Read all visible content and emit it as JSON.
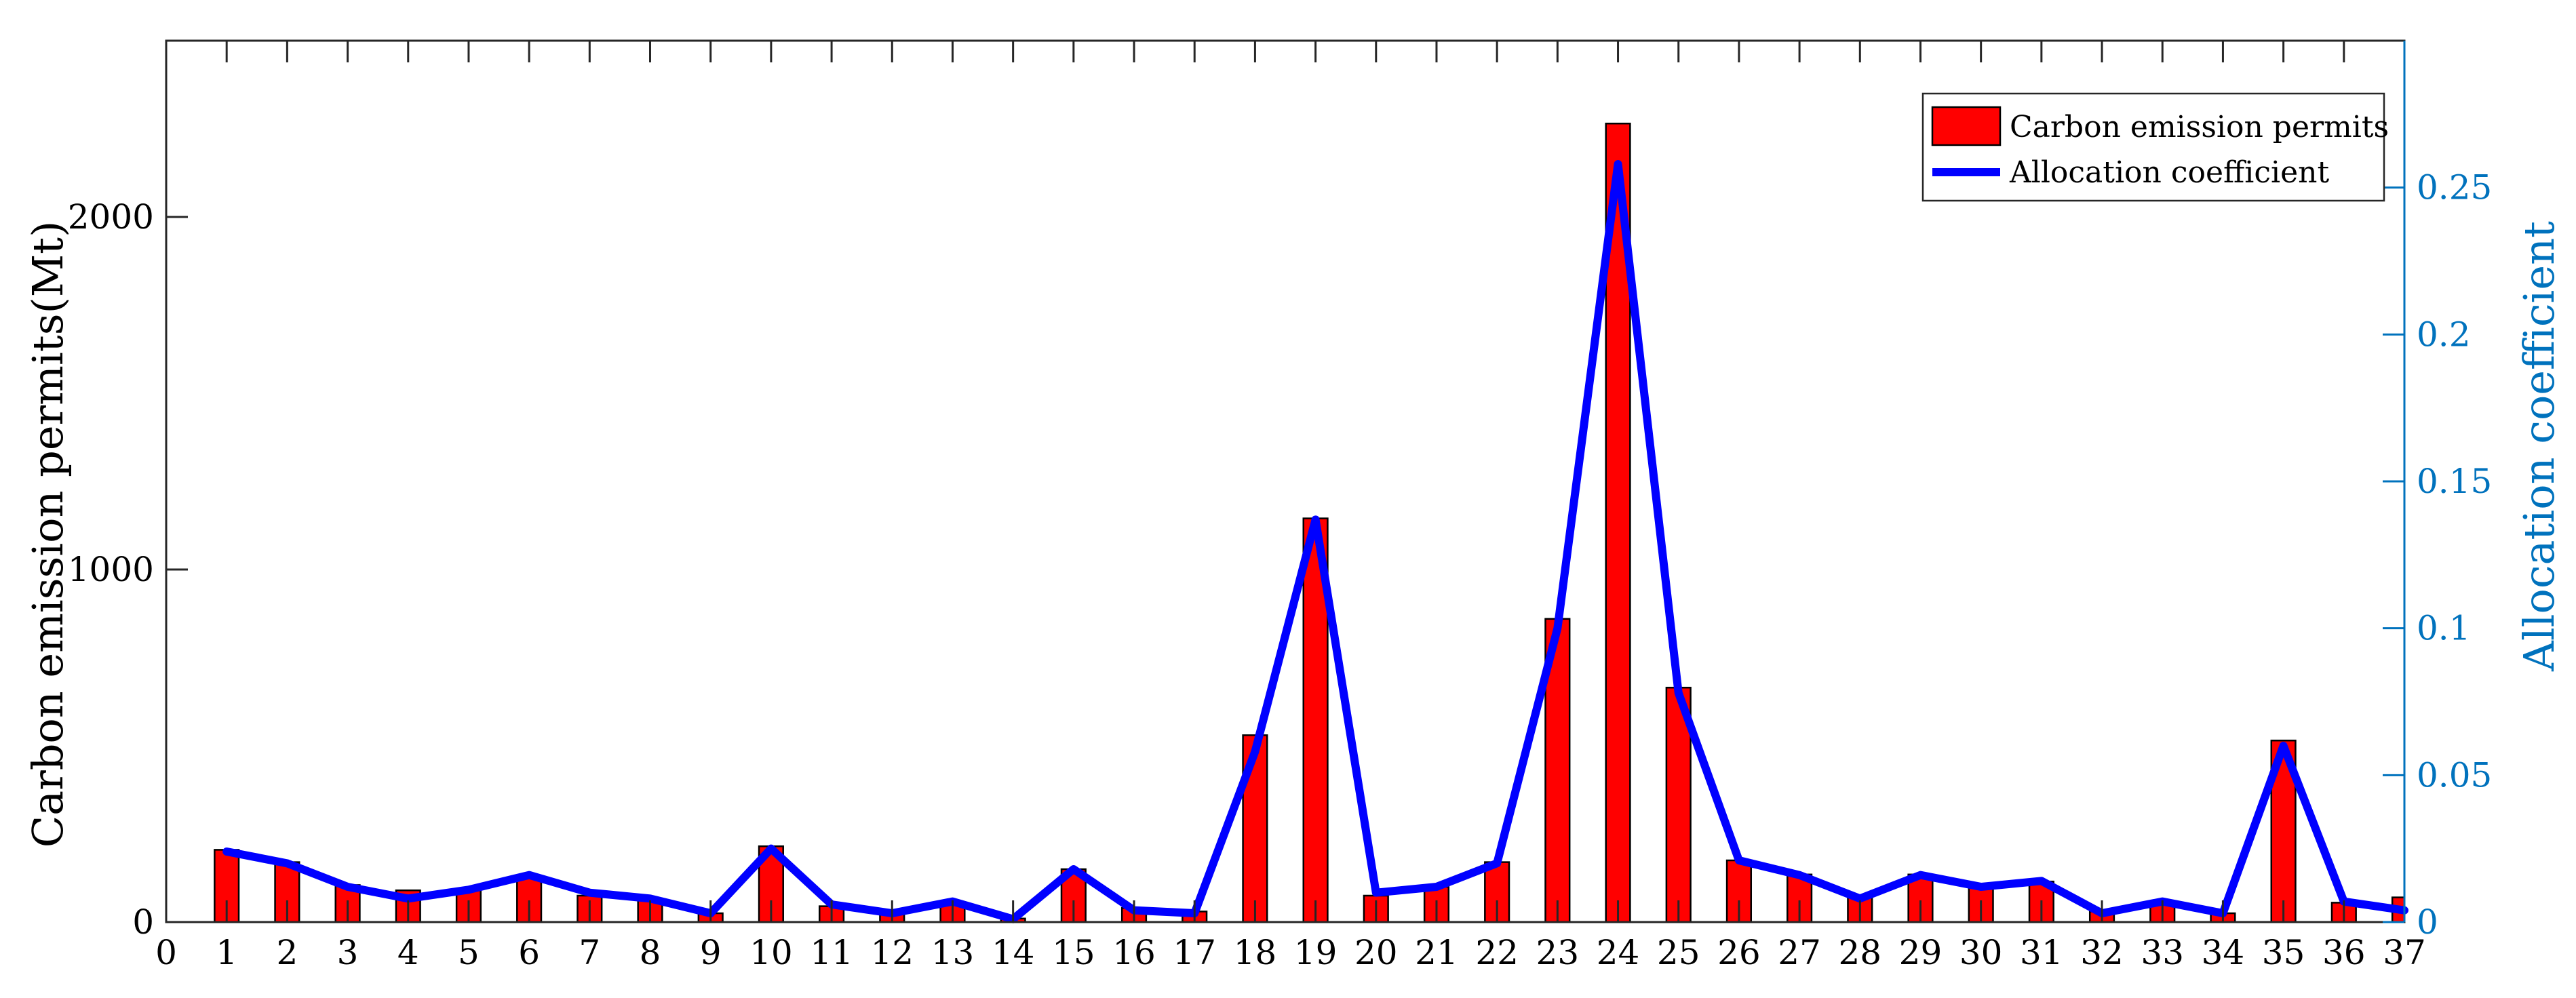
{
  "chart_data": {
    "type": "bar",
    "x": [
      1,
      2,
      3,
      4,
      5,
      6,
      7,
      8,
      9,
      10,
      11,
      12,
      13,
      14,
      15,
      16,
      17,
      18,
      19,
      20,
      21,
      22,
      23,
      24,
      25,
      26,
      27,
      28,
      29,
      30,
      31,
      32,
      33,
      34,
      35,
      36,
      37
    ],
    "xticks": [
      0,
      1,
      2,
      3,
      4,
      5,
      6,
      7,
      8,
      9,
      10,
      11,
      12,
      13,
      14,
      15,
      16,
      17,
      18,
      19,
      20,
      21,
      22,
      23,
      24,
      25,
      26,
      27,
      28,
      29,
      30,
      31,
      32,
      33,
      34,
      35,
      36,
      37
    ],
    "xlim": [
      0,
      37
    ],
    "ylabel": "Carbon emission permits(Mt)",
    "ylim": [
      0,
      2500
    ],
    "yticks": [
      0,
      1000,
      2000
    ],
    "y2label": "Allocation coefficient",
    "y2lim": [
      0,
      0.3
    ],
    "y2ticks": [
      0,
      0.05,
      0.1,
      0.15,
      0.2,
      0.25
    ],
    "y2ticklabels": [
      "0",
      "0.05",
      "0.1",
      "0.15",
      "0.2",
      "0.25"
    ],
    "legend_position": "top-right",
    "grid": false,
    "series": [
      {
        "name": "Carbon emission permits",
        "type": "bar",
        "axis": "left",
        "color": "#FF0000",
        "values": [
          205,
          170,
          105,
          90,
          95,
          125,
          75,
          65,
          25,
          215,
          45,
          25,
          55,
          10,
          150,
          40,
          30,
          530,
          1145,
          75,
          100,
          170,
          860,
          2265,
          665,
          175,
          135,
          70,
          135,
          100,
          115,
          30,
          55,
          25,
          515,
          55,
          70
        ]
      },
      {
        "name": "Allocation coefficient",
        "type": "line",
        "axis": "right",
        "color": "#0000FF",
        "values": [
          0.024,
          0.02,
          0.012,
          0.008,
          0.011,
          0.016,
          0.01,
          0.008,
          0.003,
          0.025,
          0.006,
          0.003,
          0.007,
          0.001,
          0.018,
          0.004,
          0.003,
          0.058,
          0.137,
          0.01,
          0.012,
          0.02,
          0.1,
          0.258,
          0.078,
          0.021,
          0.016,
          0.008,
          0.016,
          0.012,
          0.014,
          0.003,
          0.007,
          0.003,
          0.06,
          0.007,
          0.004
        ]
      }
    ]
  }
}
